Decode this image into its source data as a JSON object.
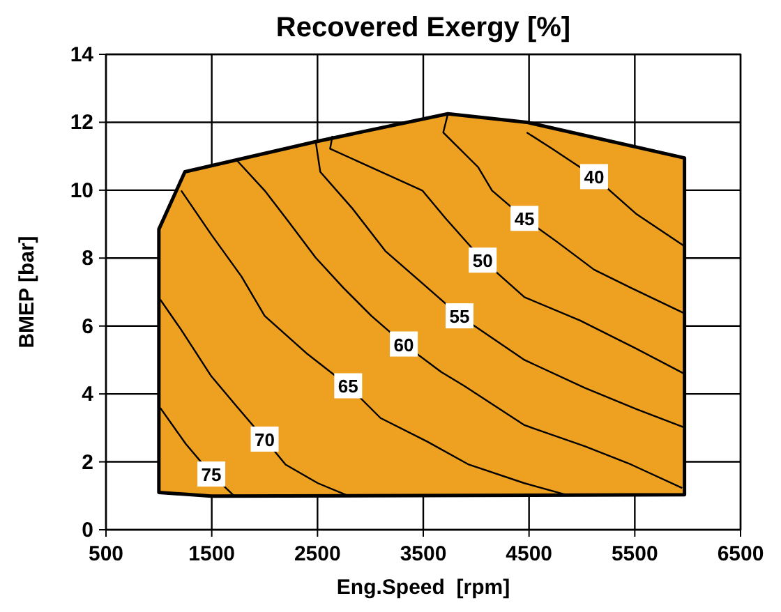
{
  "chart_data": {
    "type": "line",
    "title": "Recovered Exergy [%]",
    "xlabel": "Eng.Speed  [rpm]",
    "ylabel": "BMEP [bar]",
    "xlim": [
      500,
      6500
    ],
    "xticks": [
      500,
      1500,
      2500,
      3500,
      4500,
      5500,
      6500
    ],
    "ylim": [
      0,
      14
    ],
    "yticks": [
      0,
      2,
      4,
      6,
      8,
      10,
      12,
      14
    ],
    "grid": true,
    "line_style": "solid",
    "marker": "none",
    "series": [
      {
        "type": "area",
        "color": "#eea020",
        "x": [
          1000,
          1000,
          1246,
          2483,
          3733,
          4478,
          5970,
          5970,
          1496,
          1000
        ],
        "values": [
          1.1,
          8.85,
          10.54,
          11.43,
          12.25,
          12.0,
          10.95,
          1.03,
          0.99,
          1.1
        ]
      },
      {
        "name": "75",
        "color": "#000000",
        "x": [
          1013,
          1254,
          1496,
          1715
        ],
        "values": [
          3.59,
          2.53,
          1.64,
          0.99
        ]
      },
      {
        "name": "70",
        "color": "#000000",
        "x": [
          1013,
          1211,
          1496,
          1737,
          2000,
          2198,
          2504,
          2768
        ],
        "values": [
          6.78,
          5.89,
          4.52,
          3.63,
          2.67,
          1.92,
          1.37,
          1.03
        ]
      },
      {
        "name": "65",
        "color": "#000000",
        "x": [
          1211,
          1496,
          1781,
          2000,
          2395,
          2790,
          3096,
          3536,
          3930,
          4457,
          4852
        ],
        "values": [
          9.99,
          8.69,
          7.46,
          6.3,
          5.2,
          4.24,
          3.29,
          2.6,
          1.92,
          1.37,
          1.03
        ]
      },
      {
        "name": "60",
        "color": "#000000",
        "x": [
          1737,
          2000,
          2220,
          2483,
          2746,
          3009,
          3316,
          3668,
          3886,
          4457,
          5026,
          5466,
          5948
        ],
        "values": [
          10.88,
          9.99,
          9.1,
          8.01,
          7.12,
          6.3,
          5.47,
          4.65,
          4.24,
          3.08,
          2.46,
          1.92,
          1.23
        ]
      },
      {
        "name": "55",
        "color": "#000000",
        "x": [
          2483,
          2526,
          2833,
          3141,
          3491,
          3843,
          4457,
          5026,
          5510,
          5970
        ],
        "values": [
          11.43,
          10.54,
          9.45,
          8.21,
          7.26,
          6.3,
          5.0,
          4.18,
          3.56,
          3.01
        ]
      },
      {
        "name": "50",
        "color": "#000000",
        "x": [
          2641,
          2619,
          3491,
          3711,
          4062,
          4457,
          4984,
          5510,
          5970
        ],
        "values": [
          11.6,
          11.22,
          9.99,
          9.17,
          7.94,
          6.85,
          6.16,
          5.34,
          4.59
        ]
      },
      {
        "name": "45",
        "color": "#000000",
        "x": [
          3733,
          3689,
          4018,
          4150,
          4457,
          4764,
          5115,
          5466,
          5970
        ],
        "values": [
          12.25,
          11.7,
          10.68,
          9.99,
          9.17,
          8.48,
          7.66,
          7.12,
          6.37
        ]
      },
      {
        "name": "40",
        "color": "#000000",
        "x": [
          4478,
          4720,
          5115,
          5510,
          5970
        ],
        "values": [
          11.7,
          11.22,
          10.4,
          9.31,
          8.35
        ]
      }
    ]
  }
}
